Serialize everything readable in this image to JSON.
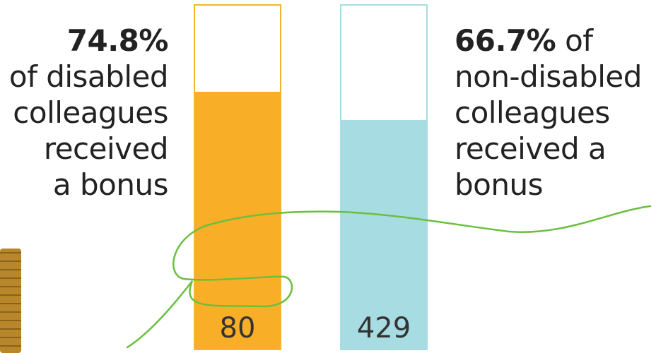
{
  "chart_data": {
    "type": "bar",
    "ylim": [
      0,
      100
    ],
    "bars": [
      {
        "pct_label": "74.8%",
        "pct_value": 74.8,
        "caption_rest": [
          "of disabled",
          "colleagues",
          "received",
          "a bonus"
        ],
        "count": "80",
        "fill_color": "#F9AE27",
        "border_color": "#F5B530"
      },
      {
        "pct_label": "66.7%",
        "pct_value": 66.7,
        "caption_inline": " of",
        "caption_rest": [
          "non-disabled",
          "colleagues",
          "received a",
          "bonus"
        ],
        "count": "429",
        "fill_color": "#A6DCE2",
        "border_color": "#A6DCE2"
      }
    ]
  },
  "decor": {
    "line_color": "#6DBE3F",
    "coin_color": "#B8862B"
  }
}
